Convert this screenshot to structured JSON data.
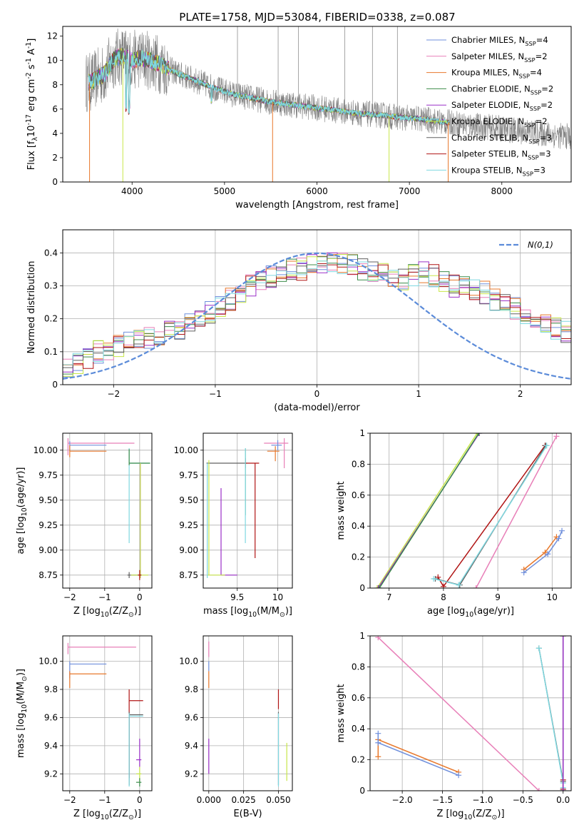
{
  "title": "PLATE=1758, MJD=53084, FIBERID=0338, z=0.087",
  "colors": {
    "Chabrier MILES": "#6f8fdc",
    "Salpeter MILES": "#e87fb8",
    "Kroupa MILES": "#e8782b",
    "Chabrier ELODIE": "#3c8c4a",
    "Salpeter ELODIE": "#9b30c8",
    "Kroupa ELODIE": "#c8e64a",
    "Chabrier STELIB": "#606060",
    "Salpeter STELIB": "#b01515",
    "Kroupa STELIB": "#7fd8e0",
    "normal": "#5b8bd9"
  },
  "chart_data": [
    {
      "id": "spectrum",
      "type": "line",
      "xlabel": "wavelength [Angstrom, rest frame]",
      "ylabel": "Flux [f$_\\lambda$10$^{-17}$ erg cm$^{-2}$ s$^{-1}$ A$^{-1}$]",
      "xlim": [
        3250,
        8750
      ],
      "ylim": [
        0,
        12.8
      ],
      "xticks": [
        4000,
        5000,
        6000,
        7000,
        8000
      ],
      "yticks": [
        0,
        2,
        4,
        6,
        8,
        10,
        12
      ],
      "grid": false,
      "legend_position": "right",
      "legend": [
        "Chabrier MILES, N$_{SSP}$=4",
        "Salpeter MILES, N$_{SSP}$=2",
        "Kroupa MILES, N$_{SSP}$=4",
        "Chabrier ELODIE, N$_{SSP}$=2",
        "Salpeter ELODIE, N$_{SSP}$=2",
        "Kroupa ELODIE, N$_{SSP}$=2",
        "Chabrier STELIB, N$_{SSP}$=3",
        "Salpeter STELIB, N$_{SSP}$=3",
        "Kroupa STELIB, N$_{SSP}$=3"
      ],
      "continuum_x": [
        3550,
        3700,
        3800,
        3900,
        4000,
        4100,
        4200,
        4300,
        4400,
        4500,
        4700,
        4900,
        5100,
        5300,
        5500,
        5700,
        5900,
        6100,
        6300,
        6500,
        6700,
        6900,
        7100,
        7300,
        7420
      ],
      "continuum_y": [
        8.2,
        8.9,
        10.1,
        10.4,
        10.0,
        10.2,
        10.0,
        9.7,
        9.3,
        8.9,
        8.3,
        7.7,
        7.2,
        6.9,
        6.6,
        6.4,
        6.2,
        6.0,
        5.8,
        5.6,
        5.5,
        5.3,
        5.2,
        5.0,
        4.9
      ],
      "observed_extent": [
        3500,
        8750
      ],
      "model_extent": [
        3530,
        7430
      ]
    },
    {
      "id": "residual-histogram",
      "type": "step",
      "xlabel": "(data-model)/error",
      "ylabel": "Normed distribution",
      "xlim": [
        -2.5,
        2.5
      ],
      "ylim": [
        0,
        0.47
      ],
      "xticks": [
        -2,
        -1,
        0,
        1,
        2
      ],
      "yticks": [
        0.0,
        0.1,
        0.2,
        0.3,
        0.4
      ],
      "grid": true,
      "legend_position": "top-right",
      "legend": [
        "$\\mathcal{N}(0,1)$"
      ],
      "bin_width": 0.1,
      "bins_start": -2.5,
      "base_profile": [
        0.05,
        0.06,
        0.08,
        0.1,
        0.11,
        0.12,
        0.13,
        0.13,
        0.14,
        0.15,
        0.16,
        0.17,
        0.18,
        0.2,
        0.22,
        0.24,
        0.26,
        0.28,
        0.3,
        0.32,
        0.33,
        0.34,
        0.35,
        0.35,
        0.36,
        0.36,
        0.37,
        0.37,
        0.36,
        0.35,
        0.34,
        0.34,
        0.33,
        0.32,
        0.33,
        0.34,
        0.33,
        0.31,
        0.3,
        0.3,
        0.29,
        0.28,
        0.26,
        0.25,
        0.23,
        0.22,
        0.2,
        0.19,
        0.17,
        0.16,
        0.15,
        0.14,
        0.13,
        0.12,
        0.11,
        0.1,
        0.09,
        0.08,
        0.07,
        0.06,
        0.05,
        0.05,
        0.04,
        0.04,
        0.03,
        0.03,
        0.03,
        0.02,
        0.02,
        0.02
      ]
    },
    {
      "id": "age-vs-Z",
      "type": "errorbar",
      "xlabel": "Z [log$_{10}$(Z/Z$_\\odot$)]",
      "ylabel": "age  [log$_{10}$(age/yr)]",
      "xlim": [
        -2.2,
        0.35
      ],
      "ylim": [
        8.62,
        10.17
      ],
      "xticks": [
        -2,
        -1,
        0
      ],
      "yticks": [
        8.75,
        9.0,
        9.25,
        9.5,
        9.75,
        10.0
      ],
      "ytick_labels": [
        "8.75",
        "9.00",
        "9.25",
        "9.50",
        "9.75",
        "10.00"
      ],
      "grid": true,
      "points": [
        {
          "model": "Salpeter MILES",
          "x": -2.05,
          "y": 10.07,
          "xerr": [
            0,
            1.9
          ],
          "yerr": [
            0.12,
            0.05
          ]
        },
        {
          "model": "Chabrier MILES",
          "x": -2.0,
          "y": 10.05,
          "xerr": [
            0,
            1.05
          ],
          "yerr": [
            0.06,
            0.04
          ]
        },
        {
          "model": "Kroupa MILES",
          "x": -2.0,
          "y": 9.99,
          "xerr": [
            0,
            1.05
          ],
          "yerr": [
            0.06,
            0.06
          ]
        },
        {
          "model": "Kroupa STELIB",
          "x": -0.3,
          "y": 9.87,
          "xerr": [
            0,
            0.6
          ],
          "yerr": [
            0.8,
            0.15
          ]
        },
        {
          "model": "Chabrier ELODIE",
          "x": -0.3,
          "y": 9.87,
          "xerr": [
            0,
            0.6
          ],
          "yerr": [
            0.02,
            0.14
          ]
        },
        {
          "model": "Salpeter ELODIE",
          "x": 0.02,
          "y": 9.87,
          "xerr": [
            0,
            0
          ],
          "yerr": [
            1.15,
            0
          ]
        },
        {
          "model": "Kroupa ELODIE",
          "x": 0.02,
          "y": 9.87,
          "xerr": [
            0,
            0
          ],
          "yerr": [
            1.15,
            0
          ]
        },
        {
          "model": "Chabrier STELIB",
          "x": -0.3,
          "y": 8.75,
          "xerr": [
            0.05,
            0.35
          ],
          "yerr": [
            0.03,
            0.03
          ]
        },
        {
          "model": "Kroupa ELODIE",
          "x": -0.25,
          "y": 8.75,
          "xerr": [
            0,
            0.5
          ],
          "yerr": [
            0,
            0
          ]
        },
        {
          "model": "Salpeter STELIB",
          "x": 0.0,
          "y": 8.75,
          "xerr": [
            0.05,
            0.05
          ],
          "yerr": [
            0.05,
            0.05
          ]
        }
      ]
    },
    {
      "id": "age-vs-mass",
      "type": "errorbar",
      "xlabel": "mass [log$_{10}$(M/M$_\\odot$)]",
      "xlim": [
        9.08,
        10.18
      ],
      "ylim": [
        8.62,
        10.17
      ],
      "xticks": [
        9.5,
        10.0
      ],
      "yticks": [
        8.75,
        9.0,
        9.25,
        9.5,
        9.75,
        10.0
      ],
      "ytick_labels": [
        "8.75",
        "9.00",
        "9.25",
        "9.50",
        "9.75",
        "10.00"
      ],
      "grid": true,
      "points": [
        {
          "model": "Salpeter MILES",
          "x": 10.08,
          "y": 10.07,
          "xerr": [
            0.25,
            0.05
          ],
          "yerr": [
            0.25,
            0.05
          ]
        },
        {
          "model": "Chabrier MILES",
          "x": 10.0,
          "y": 10.05,
          "xerr": [
            0.08,
            0.05
          ],
          "yerr": [
            0.05,
            0.05
          ]
        },
        {
          "model": "Kroupa MILES",
          "x": 9.97,
          "y": 9.99,
          "xerr": [
            0.1,
            0.05
          ],
          "yerr": [
            0.1,
            0.05
          ]
        },
        {
          "model": "Chabrier STELIB",
          "x": 9.6,
          "y": 9.87,
          "xerr": [
            0.48,
            0.02
          ],
          "yerr": [
            0.05,
            0.05
          ]
        },
        {
          "model": "Salpeter STELIB",
          "x": 9.72,
          "y": 9.87,
          "xerr": [
            0.12,
            0.05
          ],
          "yerr": [
            0.95,
            0
          ]
        },
        {
          "model": "Chabrier ELODIE",
          "x": 9.6,
          "y": 9.87,
          "xerr": [
            0,
            0
          ],
          "yerr": [
            0.52,
            0.15
          ]
        },
        {
          "model": "Kroupa STELIB",
          "x": 9.6,
          "y": 9.87,
          "xerr": [
            0,
            0
          ],
          "yerr": [
            0.8,
            0.15
          ]
        },
        {
          "model": "Salpeter ELODIE",
          "x": 9.3,
          "y": 8.75,
          "xerr": [
            0,
            0.2
          ],
          "yerr": [
            0,
            0.87
          ]
        },
        {
          "model": "Kroupa ELODIE",
          "x": 9.15,
          "y": 8.75,
          "xerr": [
            0.02,
            0.2
          ],
          "yerr": [
            0,
            1.15
          ]
        },
        {
          "model": "Kroupa STELIB",
          "x": 9.13,
          "y": 9.87,
          "xerr": [
            0,
            0
          ],
          "yerr": [
            1.15,
            0
          ]
        }
      ]
    },
    {
      "id": "weight-vs-age",
      "type": "line",
      "xlabel": "age  [log$_{10}$(age/yr)]",
      "ylabel": "mass weight",
      "xlim": [
        6.65,
        10.35
      ],
      "ylim": [
        0,
        1.0
      ],
      "xticks": [
        7,
        8,
        9,
        10
      ],
      "yticks": [
        0.0,
        0.2,
        0.4,
        0.6,
        0.8,
        1.0
      ],
      "grid": true,
      "series": [
        {
          "model": "Kroupa ELODIE",
          "x": [
            6.78,
            8.62
          ],
          "y": [
            0.0,
            1.0
          ]
        },
        {
          "model": "Salpeter ELODIE",
          "x": [
            6.8,
            8.66
          ],
          "y": [
            0.0,
            1.0
          ]
        },
        {
          "model": "Chabrier ELODIE",
          "x": [
            6.82,
            8.65
          ],
          "y": [
            0.0,
            1.0
          ]
        },
        {
          "model": "Salpeter STELIB",
          "x": [
            7.9,
            8.0,
            9.87
          ],
          "y": [
            0.07,
            0.01,
            0.92
          ]
        },
        {
          "model": "Chabrier STELIB",
          "x": [
            7.85,
            8.3,
            9.88
          ],
          "y": [
            0.06,
            0.02,
            0.92
          ]
        },
        {
          "model": "Kroupa STELIB",
          "x": [
            7.82,
            8.28,
            9.9
          ],
          "y": [
            0.06,
            0.02,
            0.92
          ]
        },
        {
          "model": "Salpeter MILES",
          "x": [
            8.6,
            10.08
          ],
          "y": [
            0.0,
            0.98
          ]
        },
        {
          "model": "Kroupa MILES",
          "x": [
            9.48,
            9.87,
            10.08
          ],
          "y": [
            0.12,
            0.23,
            0.33
          ]
        },
        {
          "model": "Chabrier MILES",
          "x": [
            9.48,
            9.92,
            10.12,
            10.18
          ],
          "y": [
            0.1,
            0.22,
            0.32,
            0.37
          ]
        }
      ]
    },
    {
      "id": "mass-vs-Z",
      "type": "errorbar",
      "xlabel": "Z [log$_{10}$(Z/Z$_\\odot$)]",
      "ylabel": "mass [log$_{10}$(M/M$_\\odot$)]",
      "xlim": [
        -2.2,
        0.35
      ],
      "ylim": [
        9.08,
        10.18
      ],
      "xticks": [
        -2,
        -1,
        0
      ],
      "yticks": [
        9.2,
        9.4,
        9.6,
        9.8,
        10.0
      ],
      "ytick_labels": [
        "9.2",
        "9.4",
        "9.6",
        "9.8",
        "10.0"
      ],
      "grid": true,
      "points": [
        {
          "model": "Salpeter MILES",
          "x": -2.05,
          "y": 10.1,
          "xerr": [
            0,
            1.95
          ],
          "yerr": [
            0.05,
            0.03
          ]
        },
        {
          "model": "Chabrier MILES",
          "x": -2.0,
          "y": 9.98,
          "xerr": [
            0,
            1.05
          ],
          "yerr": [
            0.1,
            0.02
          ]
        },
        {
          "model": "Kroupa MILES",
          "x": -2.0,
          "y": 9.91,
          "xerr": [
            0,
            1.05
          ],
          "yerr": [
            0.1,
            0.02
          ]
        },
        {
          "model": "Salpeter STELIB",
          "x": -0.3,
          "y": 9.72,
          "xerr": [
            0,
            0.4
          ],
          "yerr": [
            0.55,
            0.08
          ]
        },
        {
          "model": "Chabrier STELIB",
          "x": -0.3,
          "y": 9.62,
          "xerr": [
            0,
            0.4
          ],
          "yerr": [
            0.5,
            0.02
          ]
        },
        {
          "model": "Kroupa STELIB",
          "x": -0.3,
          "y": 9.61,
          "xerr": [
            0,
            0.4
          ],
          "yerr": [
            0.5,
            0.02
          ]
        },
        {
          "model": "Salpeter ELODIE",
          "x": 0.0,
          "y": 9.3,
          "xerr": [
            0.1,
            0.05
          ],
          "yerr": [
            0.05,
            0.15
          ]
        },
        {
          "model": "Kroupa ELODIE",
          "x": 0.0,
          "y": 9.2,
          "xerr": [
            0.1,
            0.05
          ],
          "yerr": [
            0.05,
            0.05
          ]
        },
        {
          "model": "Chabrier ELODIE",
          "x": 0.0,
          "y": 9.14,
          "xerr": [
            0.1,
            0.05
          ],
          "yerr": [
            0.03,
            0.03
          ]
        }
      ]
    },
    {
      "id": "mass-vs-ebv",
      "type": "errorbar",
      "xlabel": "E(B-V)",
      "xlim": [
        -0.004,
        0.06
      ],
      "ylim": [
        9.08,
        10.18
      ],
      "xticks": [
        0.0,
        0.025,
        0.05
      ],
      "xtick_labels": [
        "0.000",
        "0.025",
        "0.050"
      ],
      "yticks": [
        9.2,
        9.4,
        9.6,
        9.8,
        10.0
      ],
      "ytick_labels": [
        "9.2",
        "9.4",
        "9.6",
        "9.8",
        "10.0"
      ],
      "grid": true,
      "points": [
        {
          "model": "Salpeter MILES",
          "x": 0.0,
          "y": 10.1,
          "xerr": [
            0,
            0
          ],
          "yerr": [
            0.07,
            0.04
          ]
        },
        {
          "model": "Kroupa MILES",
          "x": 0.0,
          "y": 9.91,
          "xerr": [
            0,
            0
          ],
          "yerr": [
            0.1,
            0.02
          ]
        },
        {
          "model": "Chabrier MILES",
          "x": 0.0,
          "y": 9.98,
          "xerr": [
            0,
            0
          ],
          "yerr": [
            0.05,
            0.02
          ]
        },
        {
          "model": "Salpeter ELODIE",
          "x": 0.0,
          "y": 9.3,
          "xerr": [
            0,
            0
          ],
          "yerr": [
            0.1,
            0.15
          ]
        },
        {
          "model": "Salpeter STELIB",
          "x": 0.05,
          "y": 9.72,
          "xerr": [
            0,
            0
          ],
          "yerr": [
            0.06,
            0.08
          ]
        },
        {
          "model": "Chabrier STELIB",
          "x": 0.05,
          "y": 9.62,
          "xerr": [
            0,
            0
          ],
          "yerr": [
            0.5,
            0.02
          ]
        },
        {
          "model": "Kroupa STELIB",
          "x": 0.05,
          "y": 9.61,
          "xerr": [
            0,
            0
          ],
          "yerr": [
            0.5,
            0.02
          ]
        },
        {
          "model": "Kroupa ELODIE",
          "x": 0.056,
          "y": 9.3,
          "xerr": [
            0,
            0
          ],
          "yerr": [
            0.15,
            0.12
          ]
        }
      ]
    },
    {
      "id": "weight-vs-Z",
      "type": "line",
      "xlabel": "Z [log$_{10}$(Z/Z$_\\odot$)]",
      "ylabel": "mass weight",
      "xlim": [
        -2.4,
        0.1
      ],
      "ylim": [
        0,
        1.0
      ],
      "xticks": [
        -2.0,
        -1.5,
        -1.0,
        -0.5,
        0.0
      ],
      "xtick_labels": [
        "−2.0",
        "−1.5",
        "−1.0",
        "−0.5",
        "0.0"
      ],
      "yticks": [
        0.0,
        0.2,
        0.4,
        0.6,
        0.8,
        1.0
      ],
      "grid": true,
      "series": [
        {
          "model": "Salpeter MILES",
          "x": [
            -2.3,
            -0.3
          ],
          "y": [
            0.99,
            0.0
          ]
        },
        {
          "model": "Kroupa MILES",
          "x": [
            -2.3,
            -2.3,
            -1.3
          ],
          "y": [
            0.22,
            0.33,
            0.12
          ]
        },
        {
          "model": "Chabrier MILES",
          "x": [
            -2.3,
            -2.3,
            -1.3
          ],
          "y": [
            0.37,
            0.31,
            0.1
          ]
        },
        {
          "model": "Chabrier STELIB",
          "x": [
            -0.3,
            0.0,
            0.0
          ],
          "y": [
            0.92,
            0.06,
            0.01
          ]
        },
        {
          "model": "Kroupa STELIB",
          "x": [
            -0.3,
            0.0,
            0.0
          ],
          "y": [
            0.92,
            0.05,
            0.02
          ]
        },
        {
          "model": "Salpeter STELIB",
          "x": [
            0.0,
            0.0
          ],
          "y": [
            0.01,
            0.07
          ]
        },
        {
          "model": "Kroupa ELODIE",
          "x": [
            0.0,
            0.0
          ],
          "y": [
            0.0,
            1.0
          ]
        },
        {
          "model": "Chabrier ELODIE",
          "x": [
            0.0,
            0.0
          ],
          "y": [
            0.0,
            1.0
          ]
        },
        {
          "model": "Salpeter ELODIE",
          "x": [
            0.0,
            0.0
          ],
          "y": [
            0.0,
            1.0
          ]
        }
      ]
    }
  ]
}
